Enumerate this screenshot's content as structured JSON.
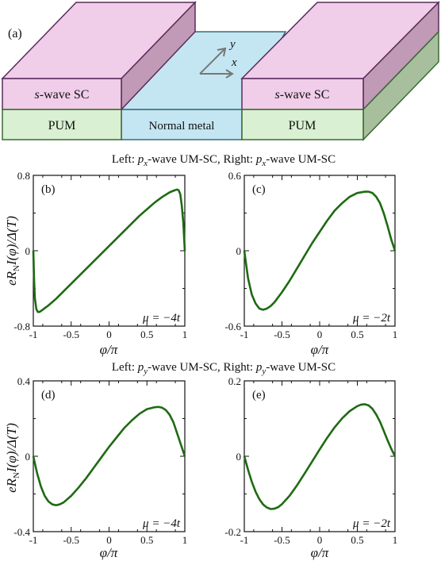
{
  "schematic": {
    "panel_label": "(a)",
    "left_top_label_italic": "s",
    "left_top_label": "-wave SC",
    "right_top_label_italic": "s",
    "right_top_label": "-wave SC",
    "left_bottom_label": "PUM",
    "right_bottom_label": "PUM",
    "middle_label": "Normal metal",
    "axis_y": "y",
    "axis_x": "x",
    "colors": {
      "sc": "#f0cde8",
      "pum": "#d9f0d2",
      "metal": "#c4e6f2",
      "edge": "#5a2a5c"
    }
  },
  "row_titles": [
    {
      "left_pre": "Left: ",
      "left_p": "p",
      "left_sub": "x",
      "mid": "-wave UM-SC, Right: ",
      "right_p": "p",
      "right_sub": "x",
      "post": "-wave UM-SC"
    },
    {
      "left_pre": "Left: ",
      "left_p": "p",
      "left_sub": "y",
      "mid": "-wave UM-SC, Right: ",
      "right_p": "p",
      "right_sub": "y",
      "post": "-wave UM-SC"
    }
  ],
  "ylabel_parts": {
    "e": "e",
    "R": "R",
    "sub": "N",
    "rest": "I(φ)/Δ(T)"
  },
  "xlabel": "φ/π",
  "chart_data": [
    {
      "type": "line",
      "panel": "(b)",
      "mu": "μ = −4t",
      "xlim": [
        -1,
        1
      ],
      "ylim": [
        -0.8,
        0.8
      ],
      "xticks": [
        "-1",
        "-0.5",
        "0",
        "0.5",
        "1"
      ],
      "yticks": [
        "0.8",
        "0",
        "-0.8"
      ],
      "series": [
        {
          "color": "#1e6b12",
          "x": [
            -1,
            -0.99,
            -0.98,
            -0.96,
            -0.94,
            -0.92,
            -0.9,
            -0.85,
            -0.8,
            -0.7,
            -0.6,
            -0.5,
            -0.4,
            -0.3,
            -0.2,
            -0.1,
            0,
            0.1,
            0.2,
            0.3,
            0.4,
            0.5,
            0.6,
            0.7,
            0.8,
            0.86,
            0.9,
            0.92,
            0.94,
            0.96,
            0.98,
            1
          ],
          "y": [
            0,
            -0.3,
            -0.5,
            -0.62,
            -0.65,
            -0.65,
            -0.64,
            -0.61,
            -0.58,
            -0.51,
            -0.43,
            -0.35,
            -0.27,
            -0.19,
            -0.11,
            -0.03,
            0.05,
            0.13,
            0.21,
            0.29,
            0.37,
            0.44,
            0.51,
            0.57,
            0.62,
            0.64,
            0.65,
            0.64,
            0.6,
            0.48,
            0.3,
            0
          ]
        }
      ]
    },
    {
      "type": "line",
      "panel": "(c)",
      "mu": "μ = −2t",
      "xlim": [
        -1,
        1
      ],
      "ylim": [
        -0.6,
        0.6
      ],
      "xticks": [
        "-1",
        "-0.5",
        "0",
        "0.5",
        "1"
      ],
      "yticks": [
        "0.6",
        "0",
        "-0.6"
      ],
      "series": [
        {
          "color": "#1e6b12",
          "x": [
            -1,
            -0.95,
            -0.9,
            -0.85,
            -0.8,
            -0.75,
            -0.7,
            -0.65,
            -0.6,
            -0.5,
            -0.4,
            -0.3,
            -0.2,
            -0.1,
            0,
            0.1,
            0.2,
            0.3,
            0.4,
            0.5,
            0.6,
            0.65,
            0.7,
            0.75,
            0.8,
            0.85,
            0.9,
            0.95,
            1
          ],
          "y": [
            0,
            -0.22,
            -0.35,
            -0.42,
            -0.46,
            -0.47,
            -0.46,
            -0.44,
            -0.41,
            -0.33,
            -0.24,
            -0.14,
            -0.04,
            0.06,
            0.15,
            0.24,
            0.32,
            0.38,
            0.43,
            0.46,
            0.47,
            0.47,
            0.46,
            0.43,
            0.38,
            0.3,
            0.2,
            0.09,
            0
          ]
        }
      ]
    },
    {
      "type": "line",
      "panel": "(d)",
      "mu": "μ = −4t",
      "xlim": [
        -1,
        1
      ],
      "ylim": [
        -0.4,
        0.4
      ],
      "xticks": [
        "-1",
        "-0.5",
        "0",
        "0.5",
        "1"
      ],
      "yticks": [
        "0.4",
        "0",
        "-0.4"
      ],
      "series": [
        {
          "color": "#1e6b12",
          "x": [
            -1,
            -0.95,
            -0.9,
            -0.85,
            -0.8,
            -0.75,
            -0.7,
            -0.65,
            -0.6,
            -0.5,
            -0.4,
            -0.3,
            -0.2,
            -0.1,
            0,
            0.1,
            0.2,
            0.3,
            0.4,
            0.5,
            0.6,
            0.65,
            0.7,
            0.75,
            0.8,
            0.85,
            0.9,
            0.95,
            1
          ],
          "y": [
            0,
            -0.09,
            -0.16,
            -0.21,
            -0.24,
            -0.255,
            -0.26,
            -0.255,
            -0.245,
            -0.21,
            -0.165,
            -0.115,
            -0.06,
            -0.005,
            0.05,
            0.1,
            0.15,
            0.19,
            0.225,
            0.25,
            0.26,
            0.262,
            0.258,
            0.245,
            0.22,
            0.18,
            0.12,
            0.06,
            0
          ]
        }
      ]
    },
    {
      "type": "line",
      "panel": "(e)",
      "mu": "μ = −2t",
      "xlim": [
        -1,
        1
      ],
      "ylim": [
        -0.2,
        0.2
      ],
      "xticks": [
        "-1",
        "-0.5",
        "0",
        "0.5",
        "1"
      ],
      "yticks": [
        "0.2",
        "0",
        "-0.2"
      ],
      "series": [
        {
          "color": "#1e6b12",
          "x": [
            -1,
            -0.95,
            -0.9,
            -0.85,
            -0.8,
            -0.75,
            -0.7,
            -0.65,
            -0.6,
            -0.55,
            -0.5,
            -0.4,
            -0.3,
            -0.2,
            -0.1,
            0,
            0.1,
            0.2,
            0.3,
            0.4,
            0.5,
            0.55,
            0.6,
            0.65,
            0.7,
            0.75,
            0.8,
            0.85,
            0.9,
            0.95,
            1
          ],
          "y": [
            0,
            -0.036,
            -0.068,
            -0.094,
            -0.114,
            -0.128,
            -0.136,
            -0.14,
            -0.139,
            -0.135,
            -0.127,
            -0.105,
            -0.077,
            -0.046,
            -0.014,
            0.018,
            0.049,
            0.077,
            0.101,
            0.12,
            0.133,
            0.137,
            0.138,
            0.135,
            0.126,
            0.111,
            0.092,
            0.068,
            0.043,
            0.02,
            0
          ]
        }
      ]
    }
  ]
}
